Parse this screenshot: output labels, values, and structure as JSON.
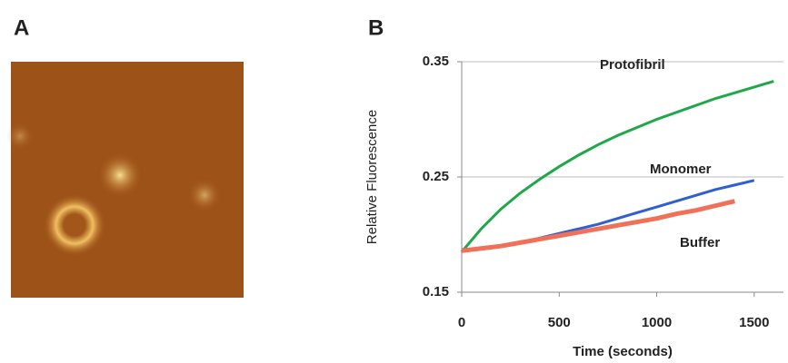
{
  "panel_a": {
    "label": "A"
  },
  "chart_data": {
    "type": "line",
    "panel_label": "B",
    "y_label": "Relative Fluorescence",
    "x_label": "Time (seconds)",
    "xlim": [
      0,
      1650
    ],
    "xticks": [
      0,
      500,
      1000,
      1500
    ],
    "ylim": [
      0.15,
      0.35
    ],
    "yticks": [
      0.15,
      0.25,
      0.35
    ],
    "grid": true,
    "series": [
      {
        "name": "Protofibril",
        "color": "#1fa84a",
        "x": [
          0,
          100,
          200,
          300,
          400,
          500,
          600,
          700,
          800,
          900,
          1000,
          1100,
          1200,
          1300,
          1400,
          1500,
          1600
        ],
        "values": [
          0.185,
          0.205,
          0.222,
          0.236,
          0.248,
          0.259,
          0.269,
          0.278,
          0.286,
          0.293,
          0.3,
          0.306,
          0.312,
          0.318,
          0.323,
          0.328,
          0.333
        ]
      },
      {
        "name": "Monomer",
        "color": "#2f5fd0",
        "x": [
          0,
          100,
          200,
          300,
          400,
          500,
          600,
          700,
          800,
          900,
          1000,
          1100,
          1200,
          1300,
          1400,
          1500
        ],
        "values": [
          0.187,
          0.188,
          0.19,
          0.193,
          0.197,
          0.201,
          0.205,
          0.209,
          0.214,
          0.219,
          0.224,
          0.229,
          0.234,
          0.239,
          0.243,
          0.247
        ]
      },
      {
        "name": "Buffer",
        "color": "#f07058",
        "x": [
          0,
          100,
          200,
          300,
          400,
          500,
          600,
          700,
          800,
          900,
          1000,
          1100,
          1200,
          1300,
          1400
        ],
        "values": [
          0.186,
          0.188,
          0.19,
          0.193,
          0.196,
          0.199,
          0.202,
          0.205,
          0.208,
          0.211,
          0.214,
          0.218,
          0.221,
          0.225,
          0.229
        ]
      }
    ]
  }
}
